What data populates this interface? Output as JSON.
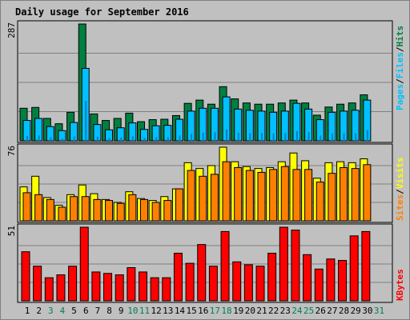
{
  "chart_data": {
    "type": "bar",
    "title": "Daily usage for September 2016",
    "categories": [
      "1",
      "2",
      "3",
      "4",
      "5",
      "6",
      "7",
      "8",
      "9",
      "10",
      "11",
      "12",
      "13",
      "14",
      "15",
      "16",
      "17",
      "18",
      "19",
      "20",
      "21",
      "22",
      "23",
      "24",
      "25",
      "26",
      "27",
      "28",
      "29",
      "30",
      "31"
    ],
    "weekend_days": [
      "3",
      "4",
      "10",
      "11",
      "17",
      "18",
      "24",
      "25",
      "31"
    ],
    "colors": {
      "background": "#c0c0c0",
      "frame": "#ececec",
      "title": "#0000b4",
      "hits": "#008040",
      "files": "#00c0ff",
      "pages": "#00c0ff",
      "visits": "#ffff00",
      "sites": "#ff8000",
      "kbytes": "#ff0000",
      "weekday_label": "#000000",
      "weekend_label": "#00804f"
    },
    "panels": [
      {
        "id": "hits-files-pages",
        "ymax_label": "287",
        "ylim": [
          0,
          287
        ],
        "legend": [
          "Pages",
          "/",
          "Files",
          "/",
          "Hits"
        ],
        "legend_colors": [
          "#00c0ff",
          "#000000",
          "#00c0ff",
          "#000000",
          "#008040"
        ],
        "series": [
          {
            "name": "Hits",
            "values": [
              80,
              82,
              55,
              42,
              70,
              287,
              66,
              50,
              55,
              68,
              47,
              52,
              53,
              62,
              92,
              100,
              90,
              133,
              103,
              93,
              90,
              90,
              93,
              100,
              93,
              63,
              83,
              90,
              93,
              113,
              0
            ]
          },
          {
            "name": "Files",
            "values": [
              50,
              55,
              35,
              25,
              45,
              178,
              40,
              27,
              32,
              44,
              28,
              37,
              38,
              53,
              73,
              80,
              80,
              108,
              78,
              75,
              73,
              70,
              73,
              92,
              78,
              52,
              70,
              73,
              75,
              100,
              0
            ]
          },
          {
            "name": "Pages",
            "values": [
              12,
              13,
              9,
              6,
              11,
              98,
              10,
              7,
              8,
              11,
              7,
              9,
              9,
              13,
              17,
              20,
              21,
              28,
              20,
              19,
              19,
              18,
              19,
              24,
              21,
              13,
              18,
              19,
              19,
              26,
              0
            ]
          }
        ]
      },
      {
        "id": "visits-sites",
        "ymax_label": "76",
        "ylim": [
          0,
          76
        ],
        "legend": [
          "Sites",
          "/",
          "Visits"
        ],
        "legend_colors": [
          "#ff8000",
          "#000000",
          "#ffff00"
        ],
        "series": [
          {
            "name": "Visits",
            "values": [
              35,
              46,
              24,
              16,
              27,
              37,
              28,
              22,
              19,
              30,
              23,
              21,
              25,
              33,
              60,
              54,
              57,
              76,
              61,
              56,
              54,
              55,
              61,
              70,
              62,
              44,
              60,
              61,
              60,
              64,
              0
            ]
          },
          {
            "name": "Sites",
            "values": [
              29,
              27,
              22,
              14,
              25,
              25,
              22,
              21,
              18,
              27,
              22,
              19,
              21,
              33,
              52,
              46,
              48,
              61,
              55,
              52,
              50,
              53,
              56,
              53,
              53,
              40,
              49,
              55,
              54,
              58,
              0
            ]
          }
        ]
      },
      {
        "id": "kbytes",
        "ymax_label": "51",
        "ylim": [
          0,
          51
        ],
        "legend": [
          "KBytes"
        ],
        "legend_colors": [
          "#ff0000"
        ],
        "series": [
          {
            "name": "KBytes",
            "values": [
              34,
              24,
              16,
              18,
              24,
              51,
              20,
              19,
              18,
              23,
              20,
              16,
              16,
              33,
              26,
              39,
              24,
              48,
              27,
              25,
              24,
              33,
              51,
              49,
              32,
              22,
              29,
              28,
              45,
              48,
              0
            ]
          }
        ]
      }
    ]
  }
}
